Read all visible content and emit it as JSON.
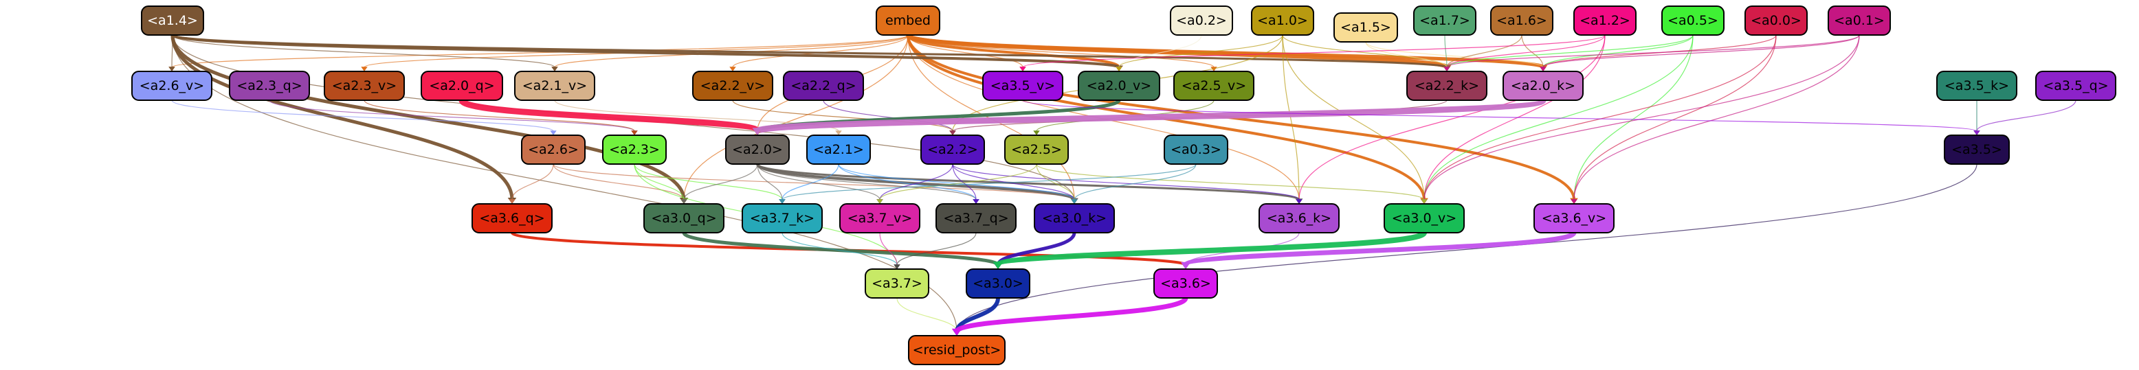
{
  "nodes": [
    {
      "id": "embed",
      "label": "embed",
      "fill": "#e06f19",
      "text": "#000000"
    },
    {
      "id": "a1_4",
      "label": "<a1.4>",
      "fill": "#7a5533",
      "text": "#ffffff"
    },
    {
      "id": "a0_2",
      "label": "<a0.2>",
      "fill": "#f4efd8",
      "text": "#000000"
    },
    {
      "id": "a1_0",
      "label": "<a1.0>",
      "fill": "#b89a10",
      "text": "#000000"
    },
    {
      "id": "a1_5",
      "label": "<a1.5>",
      "fill": "#f8dc94",
      "text": "#000000"
    },
    {
      "id": "a1_7",
      "label": "<a1.7>",
      "fill": "#52a470",
      "text": "#000000"
    },
    {
      "id": "a1_6",
      "label": "<a1.6>",
      "fill": "#b57030",
      "text": "#000000"
    },
    {
      "id": "a1_2",
      "label": "<a1.2>",
      "fill": "#f30b84",
      "text": "#000000"
    },
    {
      "id": "a0_5",
      "label": "<a0.5>",
      "fill": "#3ff034",
      "text": "#000000"
    },
    {
      "id": "a0_0",
      "label": "<a0.0>",
      "fill": "#d31c49",
      "text": "#000000"
    },
    {
      "id": "a0_1",
      "label": "<a0.1>",
      "fill": "#c51682",
      "text": "#000000"
    },
    {
      "id": "a2_6_v",
      "label": "<a2.6_v>",
      "fill": "#8c98f7",
      "text": "#000000"
    },
    {
      "id": "a2_3_q",
      "label": "<a2.3_q>",
      "fill": "#9543a9",
      "text": "#000000"
    },
    {
      "id": "a2_3_v",
      "label": "<a2.3_v>",
      "fill": "#b64b1c",
      "text": "#000000"
    },
    {
      "id": "a2_0_q",
      "label": "<a2.0_q>",
      "fill": "#f41d4e",
      "text": "#000000"
    },
    {
      "id": "a2_1_v",
      "label": "<a2.1_v>",
      "fill": "#d6b18a",
      "text": "#000000"
    },
    {
      "id": "a2_2_v",
      "label": "<a2.2_v>",
      "fill": "#ab5a0d",
      "text": "#000000"
    },
    {
      "id": "a2_2_q",
      "label": "<a2.2_q>",
      "fill": "#6a19a3",
      "text": "#000000"
    },
    {
      "id": "a3_5_v",
      "label": "<a3.5_v>",
      "fill": "#9a0be0",
      "text": "#000000"
    },
    {
      "id": "a2_0_v",
      "label": "<a2.0_v>",
      "fill": "#3b7451",
      "text": "#000000"
    },
    {
      "id": "a2_5_v",
      "label": "<a2.5_v>",
      "fill": "#6f8d18",
      "text": "#000000"
    },
    {
      "id": "a2_2_k",
      "label": "<a2.2_k>",
      "fill": "#953855",
      "text": "#000000"
    },
    {
      "id": "a2_0_k",
      "label": "<a2.0_k>",
      "fill": "#c670c6",
      "text": "#000000"
    },
    {
      "id": "a3_5_k",
      "label": "<a3.5_k>",
      "fill": "#28846d",
      "text": "#000000"
    },
    {
      "id": "a3_5_q",
      "label": "<a3.5_q>",
      "fill": "#8c22c9",
      "text": "#000000"
    },
    {
      "id": "a2_6",
      "label": "<a2.6>",
      "fill": "#c8704b",
      "text": "#000000"
    },
    {
      "id": "a2_3",
      "label": "<a2.3>",
      "fill": "#71f23d",
      "text": "#000000"
    },
    {
      "id": "a2_0",
      "label": "<a2.0>",
      "fill": "#6c6660",
      "text": "#000000"
    },
    {
      "id": "a2_1",
      "label": "<a2.1>",
      "fill": "#3a98f8",
      "text": "#000000"
    },
    {
      "id": "a2_2",
      "label": "<a2.2>",
      "fill": "#5513bf",
      "text": "#000000"
    },
    {
      "id": "a2_5",
      "label": "<a2.5>",
      "fill": "#a6b735",
      "text": "#000000"
    },
    {
      "id": "a0_3",
      "label": "<a0.3>",
      "fill": "#3a92a9",
      "text": "#000000"
    },
    {
      "id": "a3_5",
      "label": "<a3.5>",
      "fill": "#220b4e",
      "text": "#000000"
    },
    {
      "id": "a3_6_q",
      "label": "<a3.6_q>",
      "fill": "#e0270c",
      "text": "#000000"
    },
    {
      "id": "a3_0_q",
      "label": "<a3.0_q>",
      "fill": "#457653",
      "text": "#000000"
    },
    {
      "id": "a3_7_k",
      "label": "<a3.7_k>",
      "fill": "#26a8b8",
      "text": "#000000"
    },
    {
      "id": "a3_7_v",
      "label": "<a3.7_v>",
      "fill": "#da24a5",
      "text": "#000000"
    },
    {
      "id": "a3_7_q",
      "label": "<a3.7_q>",
      "fill": "#4e4e46",
      "text": "#000000"
    },
    {
      "id": "a3_0_k",
      "label": "<a3.0_k>",
      "fill": "#3812b2",
      "text": "#000000"
    },
    {
      "id": "a3_6_k",
      "label": "<a3.6_k>",
      "fill": "#a84bd1",
      "text": "#000000"
    },
    {
      "id": "a3_0_v",
      "label": "<a3.0_v>",
      "fill": "#18bd56",
      "text": "#000000"
    },
    {
      "id": "a3_6_v",
      "label": "<a3.6_v>",
      "fill": "#c150ec",
      "text": "#000000"
    },
    {
      "id": "a3_7",
      "label": "<a3.7>",
      "fill": "#c7e966",
      "text": "#000000"
    },
    {
      "id": "a3_0",
      "label": "<a3.0>",
      "fill": "#0f2aa4",
      "text": "#000000"
    },
    {
      "id": "a3_6",
      "label": "<a3.6>",
      "fill": "#d715ec",
      "text": "#000000"
    },
    {
      "id": "resid_post",
      "label": "<resid_post>",
      "fill": "#ec570e",
      "text": "#000000"
    }
  ],
  "edges": [
    {
      "from": "embed",
      "to": "a2_6_v",
      "color": "#e06f19"
    },
    {
      "from": "embed",
      "to": "a2_3_v",
      "color": "#e06f19"
    },
    {
      "from": "embed",
      "to": "a2_1_v",
      "color": "#e06f19"
    },
    {
      "from": "embed",
      "to": "a2_2_v",
      "color": "#e06f19"
    },
    {
      "from": "embed",
      "to": "a3_5_v",
      "color": "#e06f19"
    },
    {
      "from": "embed",
      "to": "a2_0_v",
      "color": "#e06f19"
    },
    {
      "from": "embed",
      "to": "a2_5_v",
      "color": "#e06f19"
    },
    {
      "from": "embed",
      "to": "a2_2_k",
      "color": "#e06f19"
    },
    {
      "from": "embed",
      "to": "a2_0_k",
      "color": "#e06f19"
    },
    {
      "from": "embed",
      "to": "a3_0_v",
      "color": "#e06f19"
    },
    {
      "from": "embed",
      "to": "a3_6_v",
      "color": "#e06f19"
    },
    {
      "from": "embed",
      "to": "a3_6_k",
      "color": "#e06f19"
    },
    {
      "from": "embed",
      "to": "a3_0_k",
      "color": "#e06f19"
    },
    {
      "from": "embed",
      "to": "a2_0",
      "color": "#e06f19"
    },
    {
      "from": "embed",
      "to": "a3_0_q",
      "color": "#e06f19"
    },
    {
      "from": "a1_4",
      "to": "a2_6_v",
      "color": "#7a5533"
    },
    {
      "from": "a1_4",
      "to": "a2_1_v",
      "color": "#7a5533"
    },
    {
      "from": "a1_4",
      "to": "a2_0_v",
      "color": "#7a5533"
    },
    {
      "from": "a1_4",
      "to": "a2_2_k",
      "color": "#7a5533"
    },
    {
      "from": "a1_4",
      "to": "a3_6_q",
      "color": "#7a5533"
    },
    {
      "from": "a1_4",
      "to": "a3_0_q",
      "color": "#7a5533"
    },
    {
      "from": "a1_4",
      "to": "a3_0_k",
      "color": "#7a5533"
    },
    {
      "from": "a1_4",
      "to": "resid_post",
      "color": "#7a5533"
    },
    {
      "from": "a0_2",
      "to": "a2_0_v",
      "color": "#f4efd8"
    },
    {
      "from": "a1_0",
      "to": "a2_0_v",
      "color": "#b89a10"
    },
    {
      "from": "a1_0",
      "to": "a2_2_k",
      "color": "#b89a10"
    },
    {
      "from": "a1_0",
      "to": "a3_6_k",
      "color": "#b89a10"
    },
    {
      "from": "a1_0",
      "to": "a3_0_v",
      "color": "#b89a10"
    },
    {
      "from": "a1_0",
      "to": "a2_2",
      "color": "#b89a10"
    },
    {
      "from": "a1_5",
      "to": "a2_2_k",
      "color": "#f8dc94"
    },
    {
      "from": "a1_5",
      "to": "a2_0_k",
      "color": "#f8dc94"
    },
    {
      "from": "a1_7",
      "to": "a2_2_k",
      "color": "#52a470"
    },
    {
      "from": "a1_6",
      "to": "a2_2_k",
      "color": "#b57030"
    },
    {
      "from": "a1_6",
      "to": "a2_0_k",
      "color": "#b57030"
    },
    {
      "from": "a1_2",
      "to": "a2_2_k",
      "color": "#f30b84"
    },
    {
      "from": "a1_2",
      "to": "a3_5_v",
      "color": "#f30b84"
    },
    {
      "from": "a1_2",
      "to": "a3_0_v",
      "color": "#f30b84"
    },
    {
      "from": "a1_2",
      "to": "a3_6_k",
      "color": "#f30b84"
    },
    {
      "from": "a0_5",
      "to": "a2_0_k",
      "color": "#3ff034"
    },
    {
      "from": "a0_5",
      "to": "a2_2_k",
      "color": "#3ff034"
    },
    {
      "from": "a0_5",
      "to": "a3_0_v",
      "color": "#3ff034"
    },
    {
      "from": "a0_5",
      "to": "a3_6_v",
      "color": "#3ff034"
    },
    {
      "from": "a0_0",
      "to": "a2_0_k",
      "color": "#d31c49"
    },
    {
      "from": "a0_0",
      "to": "a3_0_v",
      "color": "#d31c49"
    },
    {
      "from": "a0_0",
      "to": "a3_6_v",
      "color": "#d31c49"
    },
    {
      "from": "a0_1",
      "to": "a2_0_k",
      "color": "#c51682"
    },
    {
      "from": "a0_1",
      "to": "a3_0_v",
      "color": "#c51682"
    },
    {
      "from": "a0_1",
      "to": "a3_6_v",
      "color": "#c51682"
    },
    {
      "from": "a0_1",
      "to": "a2_2_k",
      "color": "#c51682"
    },
    {
      "from": "a2_6_v",
      "to": "a2_6",
      "color": "#8c98f7"
    },
    {
      "from": "a2_3_q",
      "to": "a2_3",
      "color": "#9543a9"
    },
    {
      "from": "a2_3_v",
      "to": "a2_3",
      "color": "#b64b1c"
    },
    {
      "from": "a2_0_q",
      "to": "a2_0",
      "color": "#f41d4e"
    },
    {
      "from": "a2_1_v",
      "to": "a2_1",
      "color": "#d6b18a"
    },
    {
      "from": "a2_2_q",
      "to": "a2_2",
      "color": "#6a19a3"
    },
    {
      "from": "a2_2_v",
      "to": "a2_2",
      "color": "#ab5a0d"
    },
    {
      "from": "a2_0_v",
      "to": "a2_0",
      "color": "#3b7451"
    },
    {
      "from": "a2_5_v",
      "to": "a2_5",
      "color": "#6f8d18"
    },
    {
      "from": "a2_2_k",
      "to": "a2_2",
      "color": "#953855"
    },
    {
      "from": "a2_0_k",
      "to": "a2_0",
      "color": "#c670c6"
    },
    {
      "from": "a3_5_v",
      "to": "a3_5",
      "color": "#9a0be0"
    },
    {
      "from": "a3_5_k",
      "to": "a3_5",
      "color": "#28846d"
    },
    {
      "from": "a3_5_q",
      "to": "a3_5",
      "color": "#8c22c9"
    },
    {
      "from": "a2_6",
      "to": "a3_6_q",
      "color": "#c8704b"
    },
    {
      "from": "a2_6",
      "to": "a3_0_q",
      "color": "#c8704b"
    },
    {
      "from": "a2_6",
      "to": "a3_0_k",
      "color": "#c8704b"
    },
    {
      "from": "a2_3",
      "to": "a3_0_q",
      "color": "#71f23d"
    },
    {
      "from": "a2_3",
      "to": "a3_7_k",
      "color": "#71f23d"
    },
    {
      "from": "a2_3",
      "to": "a3_7",
      "color": "#71f23d"
    },
    {
      "from": "a2_0",
      "to": "a3_0_q",
      "color": "#6c6660"
    },
    {
      "from": "a2_0",
      "to": "a3_7_k",
      "color": "#6c6660"
    },
    {
      "from": "a2_0",
      "to": "a3_7_v",
      "color": "#6c6660"
    },
    {
      "from": "a2_0",
      "to": "a3_7_q",
      "color": "#6c6660"
    },
    {
      "from": "a2_0",
      "to": "a3_0_k",
      "color": "#6c6660"
    },
    {
      "from": "a2_0",
      "to": "a3_6_k",
      "color": "#6c6660"
    },
    {
      "from": "a2_1",
      "to": "a3_7_k",
      "color": "#3a98f8"
    },
    {
      "from": "a2_1",
      "to": "a3_7_q",
      "color": "#3a98f8"
    },
    {
      "from": "a2_1",
      "to": "a3_0_k",
      "color": "#3a98f8"
    },
    {
      "from": "a2_2",
      "to": "a3_7_v",
      "color": "#5513bf"
    },
    {
      "from": "a2_2",
      "to": "a3_7_q",
      "color": "#5513bf"
    },
    {
      "from": "a2_2",
      "to": "a3_0_k",
      "color": "#5513bf"
    },
    {
      "from": "a2_2",
      "to": "a3_6_k",
      "color": "#5513bf"
    },
    {
      "from": "a2_5",
      "to": "a3_7_v",
      "color": "#a6b735"
    },
    {
      "from": "a2_5",
      "to": "a3_0_k",
      "color": "#a6b735"
    },
    {
      "from": "a2_5",
      "to": "a3_0_v",
      "color": "#a6b735"
    },
    {
      "from": "a0_3",
      "to": "a3_7_k",
      "color": "#3a92a9"
    },
    {
      "from": "a0_3",
      "to": "a3_0_k",
      "color": "#3a92a9"
    },
    {
      "from": "a3_5",
      "to": "resid_post",
      "color": "#220b4e"
    },
    {
      "from": "a3_6_q",
      "to": "a3_6",
      "color": "#e0270c"
    },
    {
      "from": "a3_0_q",
      "to": "a3_0",
      "color": "#457653"
    },
    {
      "from": "a3_7_k",
      "to": "a3_7",
      "color": "#26a8b8"
    },
    {
      "from": "a3_7_v",
      "to": "a3_7",
      "color": "#da24a5"
    },
    {
      "from": "a3_7_q",
      "to": "a3_7",
      "color": "#4e4e46"
    },
    {
      "from": "a3_0_k",
      "to": "a3_0",
      "color": "#3812b2"
    },
    {
      "from": "a3_6_k",
      "to": "a3_6",
      "color": "#a84bd1"
    },
    {
      "from": "a3_0_v",
      "to": "a3_0",
      "color": "#18bd56"
    },
    {
      "from": "a3_6_v",
      "to": "a3_6",
      "color": "#c150ec"
    },
    {
      "from": "a3_7",
      "to": "resid_post",
      "color": "#c7e966"
    },
    {
      "from": "a3_0",
      "to": "resid_post",
      "color": "#0f2aa4"
    },
    {
      "from": "a3_6",
      "to": "resid_post",
      "color": "#d715ec"
    }
  ]
}
